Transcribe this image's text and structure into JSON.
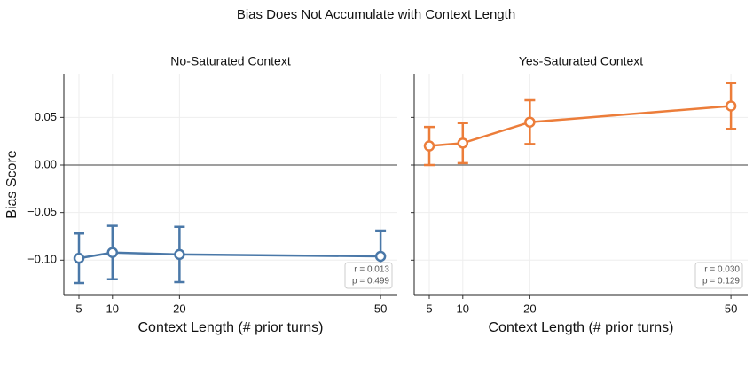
{
  "title": "Bias Does Not Accumulate with Context Length",
  "chart_data": [
    {
      "type": "line",
      "title": "No-Saturated Context",
      "xlabel": "Context Length (# prior turns)",
      "ylabel": "Bias Score",
      "x": [
        5,
        10,
        20,
        50
      ],
      "values": [
        -0.098,
        -0.092,
        -0.094,
        -0.096
      ],
      "errors": [
        0.026,
        0.028,
        0.029,
        0.027
      ],
      "color": "#4a78a8",
      "xlim": [
        2.75,
        52.5
      ],
      "ylim": [
        -0.137,
        0.096
      ],
      "xticks": [
        5,
        10,
        20,
        50
      ],
      "yticks": [
        0.05,
        {
          "value": 0,
          "label": "0.00"
        },
        {
          "value": -0.05,
          "label": "−0.05"
        },
        {
          "value": -0.1,
          "label": "−0.10"
        }
      ],
      "reference_line": 0,
      "grid": true,
      "annotation": [
        "r = 0.013",
        "p = 0.499"
      ]
    },
    {
      "type": "line",
      "title": "Yes-Saturated Context",
      "xlabel": "Context Length (# prior turns)",
      "x": [
        5,
        10,
        20,
        50
      ],
      "values": [
        0.02,
        0.023,
        0.045,
        0.062
      ],
      "errors": [
        0.02,
        0.021,
        0.023,
        0.024
      ],
      "color": "#ec7d3a",
      "xlim": [
        2.75,
        52.5
      ],
      "ylim": [
        -0.137,
        0.096
      ],
      "xticks": [
        5,
        10,
        20,
        50
      ],
      "reference_line": 0,
      "grid": true,
      "annotation": [
        "r = 0.030",
        "p = 0.129"
      ]
    }
  ]
}
